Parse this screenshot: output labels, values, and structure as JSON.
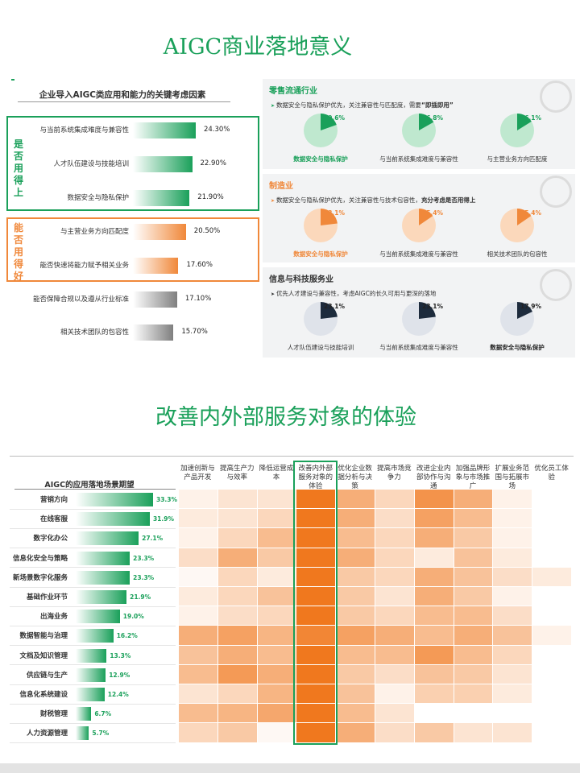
{
  "title_top": "AIGC商业落地意义",
  "title_bottom": "改善内外部服务对象的体验",
  "factor_panel": {
    "title": "企业导入AIGC类应用和能力的关键考虑因素",
    "group1_label": "是否用得上",
    "group2_label": "能否用得好",
    "items": [
      {
        "label": "与当前系统集成难度与兼容性",
        "value": "24.30%",
        "pct": 24.3,
        "color": "green"
      },
      {
        "label": "人才队伍建设与技能培训",
        "value": "22.90%",
        "pct": 22.9,
        "color": "green"
      },
      {
        "label": "数据安全与隐私保护",
        "value": "21.90%",
        "pct": 21.9,
        "color": "green"
      },
      {
        "label": "与主营业务方向匹配度",
        "value": "20.50%",
        "pct": 20.5,
        "color": "orange"
      },
      {
        "label": "能否快速将能力赋予相关业务",
        "value": "17.60%",
        "pct": 17.6,
        "color": "orange"
      },
      {
        "label": "能否保障合规以及遵从行业标准",
        "value": "17.10%",
        "pct": 17.1,
        "color": "gray"
      },
      {
        "label": "相关技术团队的包容性",
        "value": "15.70%",
        "pct": 15.7,
        "color": "gray"
      }
    ]
  },
  "sectors": [
    {
      "title": "零售流通行业",
      "accent": "#1aa05a",
      "light": "#bfe8cf",
      "desc_plain": "数据安全与隐私保护优先，关注兼容性与匹配度，需要",
      "desc_bold": "“即插即用”",
      "pies": [
        {
          "value": "19.6%",
          "pct": 19.6,
          "label": "数据安全与隐私保护",
          "highlight": true
        },
        {
          "value": "16.8%",
          "pct": 16.8,
          "label": "与当前系统集成难度与兼容性",
          "highlight": false
        },
        {
          "value": "16.1%",
          "pct": 16.1,
          "label": "与主营业务方向匹配度",
          "highlight": false
        }
      ]
    },
    {
      "title": "制造业",
      "accent": "#f0883a",
      "light": "#fbd8bb",
      "desc_plain": "数据安全与隐私保护优先，关注兼容性与技术包容性，",
      "desc_bold": "充分考虑是否用得上",
      "pies": [
        {
          "value": "23.1%",
          "pct": 23.1,
          "label": "数据安全与隐私保护",
          "highlight": true
        },
        {
          "value": "15.4%",
          "pct": 15.4,
          "label": "与当前系统集成难度与兼容性",
          "highlight": false
        },
        {
          "value": "15.4%",
          "pct": 15.4,
          "label": "相关技术团队的包容性",
          "highlight": false
        }
      ]
    },
    {
      "title": "信息与科技服务业",
      "accent": "#1d2b3c",
      "light": "#dfe3ea",
      "desc_plain": "优先人才建设与兼容性，考虑AIGC的长久可用与更深的落地",
      "desc_bold": "",
      "pies": [
        {
          "value": "23.1%",
          "pct": 23.1,
          "label": "人才队伍建设与技能培训",
          "highlight": false
        },
        {
          "value": "23.1%",
          "pct": 23.1,
          "label": "与当前系统集成难度与兼容性",
          "highlight": false
        },
        {
          "value": "17.9%",
          "pct": 17.9,
          "label": "数据安全与隐私保护",
          "highlight": true
        }
      ]
    }
  ],
  "chart_data": {
    "type": "heatmap",
    "title": "AIGC的应用落地场景期望",
    "columns": [
      "加速创新与产品开发",
      "提高生产力与效率",
      "降低运营成本",
      "改善内外部服务对象的体验",
      "优化企业数据分析与决策",
      "提高市场竞争力",
      "改进企业内部协作与沟通",
      "加强品牌形象与市场推广",
      "扩展业务范围与拓展市场",
      "优化员工体验"
    ],
    "highlight_column": 3,
    "rows": [
      {
        "label": "营销方向",
        "value": 33.3,
        "display": "33.3%",
        "intensity": [
          0.1,
          0.2,
          0.2,
          1.0,
          0.6,
          0.3,
          0.8,
          0.6,
          0.1,
          0.0
        ]
      },
      {
        "label": "在线客服",
        "value": 31.9,
        "display": "31.9%",
        "intensity": [
          0.15,
          0.2,
          0.3,
          1.0,
          0.6,
          0.25,
          0.7,
          0.5,
          0.1,
          0.0
        ]
      },
      {
        "label": "数字化办公",
        "value": 27.1,
        "display": "27.1%",
        "intensity": [
          0.1,
          0.3,
          0.5,
          1.0,
          0.5,
          0.3,
          0.6,
          0.4,
          0.1,
          0.0
        ]
      },
      {
        "label": "信息化安全与策略",
        "value": 23.3,
        "display": "23.3%",
        "intensity": [
          0.25,
          0.6,
          0.4,
          1.0,
          0.6,
          0.3,
          0.15,
          0.45,
          0.15,
          0.0
        ]
      },
      {
        "label": "新场景数字化服务",
        "value": 23.3,
        "display": "23.3%",
        "intensity": [
          0.05,
          0.3,
          0.15,
          1.0,
          0.4,
          0.3,
          0.6,
          0.45,
          0.25,
          0.15
        ]
      },
      {
        "label": "基础作业环节",
        "value": 21.9,
        "display": "21.9%",
        "intensity": [
          0.15,
          0.3,
          0.45,
          1.0,
          0.4,
          0.2,
          0.6,
          0.4,
          0.1,
          0.0
        ]
      },
      {
        "label": "出海业务",
        "value": 19.0,
        "display": "19.0%",
        "intensity": [
          0.1,
          0.25,
          0.3,
          1.0,
          0.4,
          0.3,
          0.5,
          0.5,
          0.25,
          0.0
        ]
      },
      {
        "label": "数据智能与治理",
        "value": 16.2,
        "display": "16.2%",
        "intensity": [
          0.6,
          0.7,
          0.55,
          0.9,
          0.7,
          0.6,
          0.5,
          0.6,
          0.45,
          0.1
        ]
      },
      {
        "label": "文档及知识管理",
        "value": 13.3,
        "display": "13.3%",
        "intensity": [
          0.45,
          0.6,
          0.5,
          1.0,
          0.5,
          0.5,
          0.75,
          0.5,
          0.3,
          0.0
        ]
      },
      {
        "label": "供应链与生产",
        "value": 12.9,
        "display": "12.9%",
        "intensity": [
          0.5,
          0.75,
          0.6,
          1.0,
          0.4,
          0.25,
          0.45,
          0.4,
          0.2,
          0.0
        ]
      },
      {
        "label": "信息化系统建设",
        "value": 12.4,
        "display": "12.4%",
        "intensity": [
          0.2,
          0.3,
          0.55,
          1.0,
          0.45,
          0.1,
          0.35,
          0.35,
          0.15,
          0.0
        ]
      },
      {
        "label": "财税管理",
        "value": 6.7,
        "display": "6.7%",
        "intensity": [
          0.5,
          0.55,
          0.65,
          1.0,
          0.5,
          0.2,
          0.0,
          0.0,
          0.0,
          0.0
        ]
      },
      {
        "label": "人力资源管理",
        "value": 5.7,
        "display": "5.7%",
        "intensity": [
          0.3,
          0.4,
          0.05,
          1.0,
          0.6,
          0.25,
          0.4,
          0.2,
          0.2,
          0.0
        ]
      }
    ]
  }
}
